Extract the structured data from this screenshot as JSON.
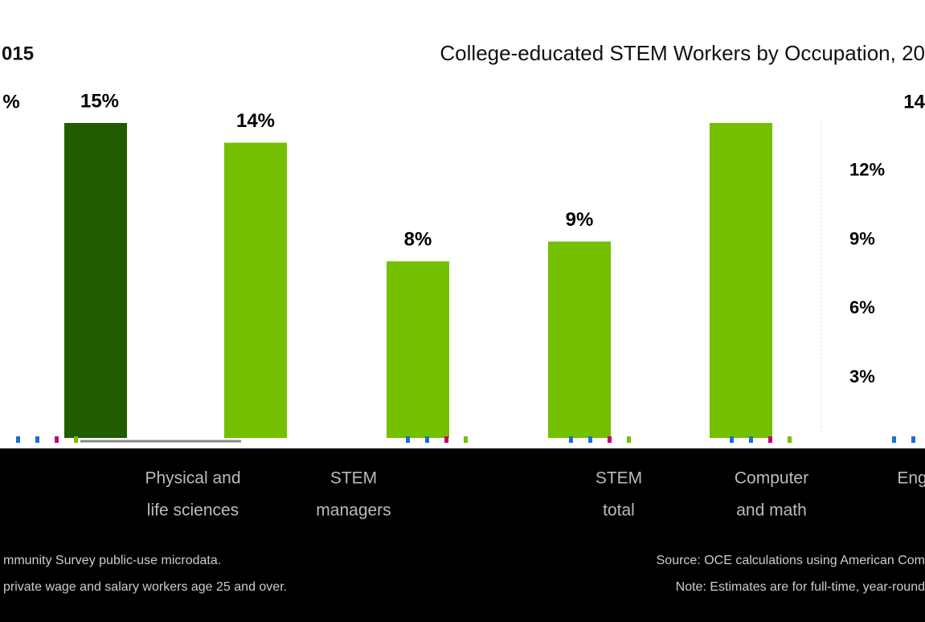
{
  "chart_data": {
    "type": "bar",
    "title": "College-educated STEM Workers by Occupation, 20",
    "corner_label": "015",
    "values": [
      15,
      14,
      8,
      9,
      15
    ],
    "value_labels": [
      "15%",
      "14%",
      "8%",
      "9%",
      null
    ],
    "colors": [
      "#225c00",
      "#73bf00",
      "#73bf00",
      "#73bf00",
      "#73bf00"
    ],
    "ylim": [
      0,
      15
    ],
    "y2lim": [
      0,
      15
    ],
    "y2ticks": [
      {
        "value": 3,
        "label": "3%"
      },
      {
        "value": 6,
        "label": "6%"
      },
      {
        "value": 9,
        "label": "9%"
      },
      {
        "value": 12,
        "label": "12%"
      }
    ],
    "annotations": [
      "%",
      "14"
    ],
    "category_labels": [
      [
        "Physical and",
        "life sciences"
      ],
      [
        "STEM",
        "managers"
      ],
      [
        "STEM",
        "total"
      ],
      [
        "Computer",
        "and math"
      ],
      [
        "Eng"
      ]
    ],
    "footnotes_left": [
      "mmunity Survey public-use microdata.",
      "private wage and salary workers age 25 and over."
    ],
    "footnotes_right": [
      "Source: OCE calculations using American Com",
      "Note: Estimates are for full-time, year-round"
    ]
  }
}
